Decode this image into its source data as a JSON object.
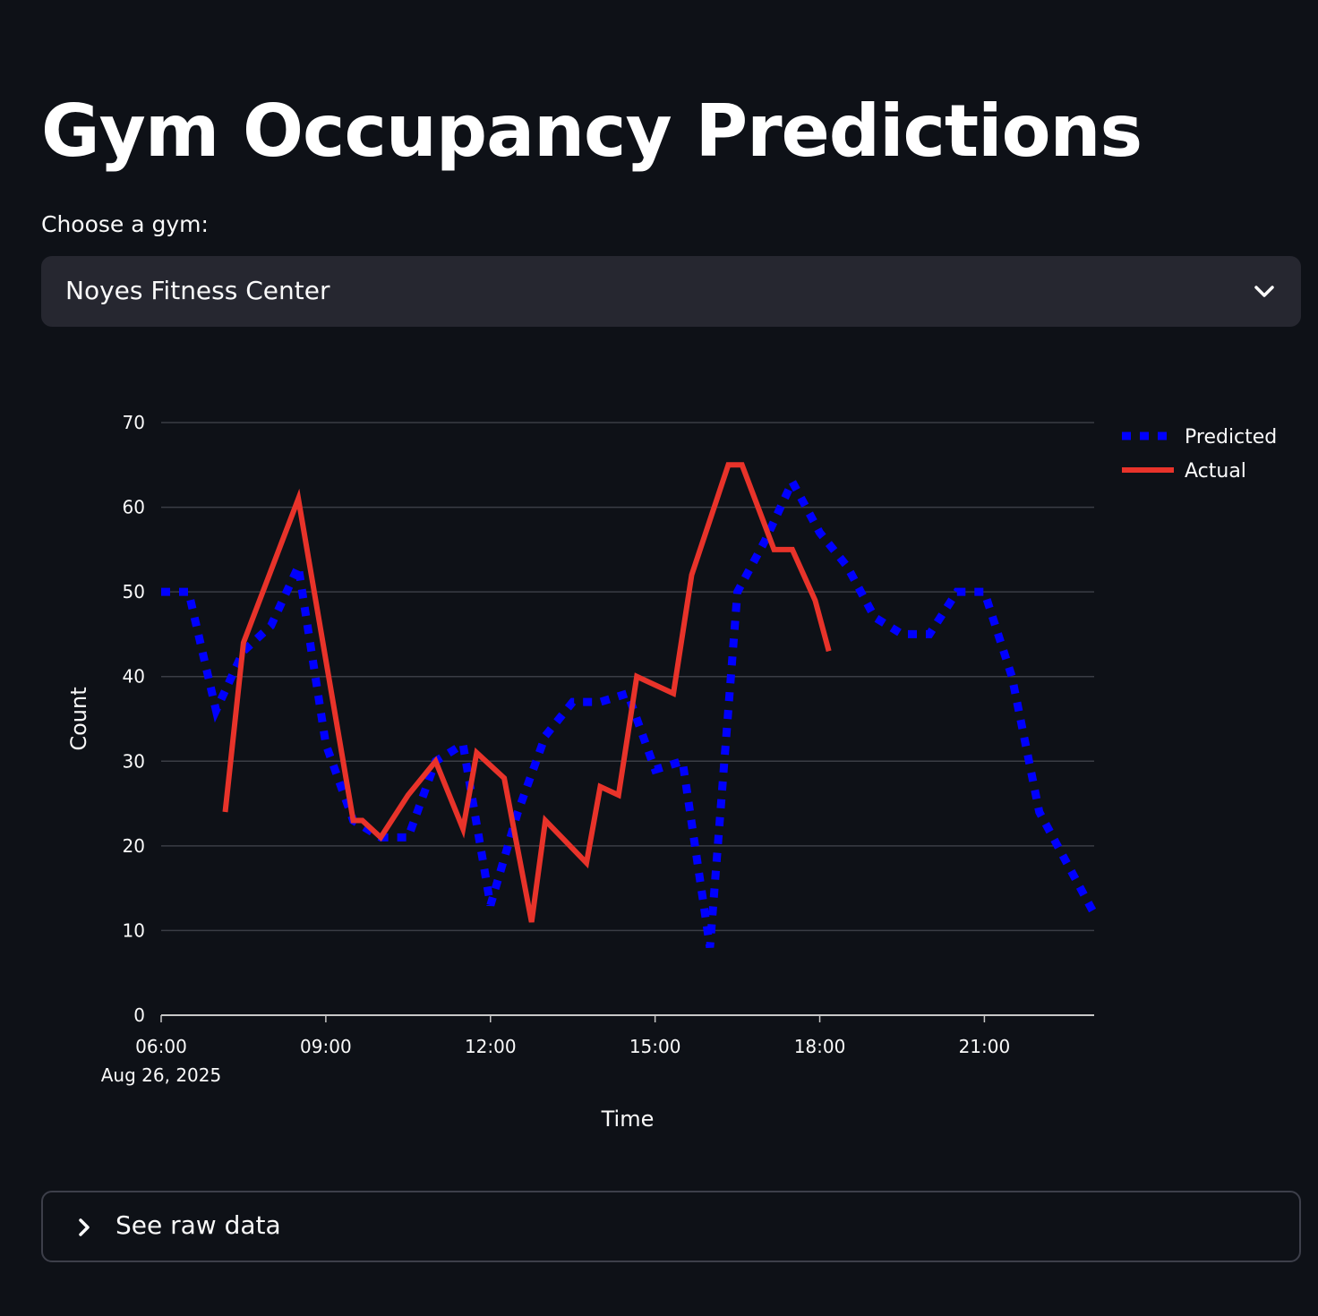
{
  "page": {
    "title": "Gym Occupancy Predictions"
  },
  "gym_select": {
    "label": "Choose a gym:",
    "value": "Noyes Fitness Center"
  },
  "expander": {
    "label": "See raw data"
  },
  "icons": {
    "select_chevron": "chevron-down-icon",
    "expander_chevron": "chevron-right-icon"
  },
  "colors": {
    "background": "#0e1117",
    "predicted": "#0000ff",
    "actual": "#e8332a"
  },
  "chart_data": {
    "type": "line",
    "xlabel": "Time",
    "ylabel": "Count",
    "ylim": [
      0,
      70
    ],
    "yticks": [
      0,
      10,
      20,
      30,
      40,
      50,
      60,
      70
    ],
    "xlim": [
      "2025-08-26 06:00",
      "2025-08-26 23:00"
    ],
    "xticks": [
      {
        "time": "2025-08-26 06:00",
        "label": "06:00",
        "sublabel": "Aug 26, 2025"
      },
      {
        "time": "2025-08-26 09:00",
        "label": "09:00"
      },
      {
        "time": "2025-08-26 12:00",
        "label": "12:00"
      },
      {
        "time": "2025-08-26 15:00",
        "label": "15:00"
      },
      {
        "time": "2025-08-26 18:00",
        "label": "18:00"
      },
      {
        "time": "2025-08-26 21:00",
        "label": "21:00"
      }
    ],
    "grid": true,
    "legend_position": "top-right",
    "series": [
      {
        "name": "Predicted",
        "style": "dotted",
        "color": "#0000ff",
        "points": [
          [
            "2025-08-26 06:00",
            50
          ],
          [
            "2025-08-26 06:30",
            50
          ],
          [
            "2025-08-26 07:00",
            36
          ],
          [
            "2025-08-26 07:30",
            43
          ],
          [
            "2025-08-26 08:00",
            46
          ],
          [
            "2025-08-26 08:30",
            53
          ],
          [
            "2025-08-26 09:00",
            32
          ],
          [
            "2025-08-26 09:30",
            23
          ],
          [
            "2025-08-26 10:00",
            21
          ],
          [
            "2025-08-26 10:30",
            21
          ],
          [
            "2025-08-26 11:00",
            30
          ],
          [
            "2025-08-26 11:30",
            32
          ],
          [
            "2025-08-26 12:00",
            13
          ],
          [
            "2025-08-26 12:30",
            24
          ],
          [
            "2025-08-26 13:00",
            33
          ],
          [
            "2025-08-26 13:30",
            37
          ],
          [
            "2025-08-26 14:00",
            37
          ],
          [
            "2025-08-26 14:30",
            38
          ],
          [
            "2025-08-26 15:00",
            29
          ],
          [
            "2025-08-26 15:30",
            30
          ],
          [
            "2025-08-26 16:00",
            8
          ],
          [
            "2025-08-26 16:30",
            50
          ],
          [
            "2025-08-26 17:00",
            56
          ],
          [
            "2025-08-26 17:30",
            63
          ],
          [
            "2025-08-26 18:00",
            57
          ],
          [
            "2025-08-26 18:30",
            53
          ],
          [
            "2025-08-26 19:00",
            47
          ],
          [
            "2025-08-26 19:30",
            45
          ],
          [
            "2025-08-26 20:00",
            45
          ],
          [
            "2025-08-26 20:30",
            50
          ],
          [
            "2025-08-26 21:00",
            50
          ],
          [
            "2025-08-26 21:30",
            40
          ],
          [
            "2025-08-26 22:00",
            24
          ],
          [
            "2025-08-26 22:30",
            18
          ],
          [
            "2025-08-26 23:00",
            12
          ]
        ]
      },
      {
        "name": "Actual",
        "style": "solid",
        "color": "#e8332a",
        "points": [
          [
            "2025-08-26 07:10",
            24
          ],
          [
            "2025-08-26 07:30",
            44
          ],
          [
            "2025-08-26 08:30",
            61
          ],
          [
            "2025-08-26 09:30",
            23
          ],
          [
            "2025-08-26 09:40",
            23
          ],
          [
            "2025-08-26 10:00",
            21
          ],
          [
            "2025-08-26 10:30",
            26
          ],
          [
            "2025-08-26 11:00",
            30
          ],
          [
            "2025-08-26 11:30",
            22
          ],
          [
            "2025-08-26 11:45",
            31
          ],
          [
            "2025-08-26 12:15",
            28
          ],
          [
            "2025-08-26 12:45",
            11
          ],
          [
            "2025-08-26 13:00",
            23
          ],
          [
            "2025-08-26 13:45",
            18
          ],
          [
            "2025-08-26 14:00",
            27
          ],
          [
            "2025-08-26 14:20",
            26
          ],
          [
            "2025-08-26 14:40",
            40
          ],
          [
            "2025-08-26 15:20",
            38
          ],
          [
            "2025-08-26 15:40",
            52
          ],
          [
            "2025-08-26 16:20",
            65
          ],
          [
            "2025-08-26 16:35",
            65
          ],
          [
            "2025-08-26 17:10",
            55
          ],
          [
            "2025-08-26 17:30",
            55
          ],
          [
            "2025-08-26 17:55",
            49
          ],
          [
            "2025-08-26 18:10",
            43
          ]
        ]
      }
    ]
  }
}
